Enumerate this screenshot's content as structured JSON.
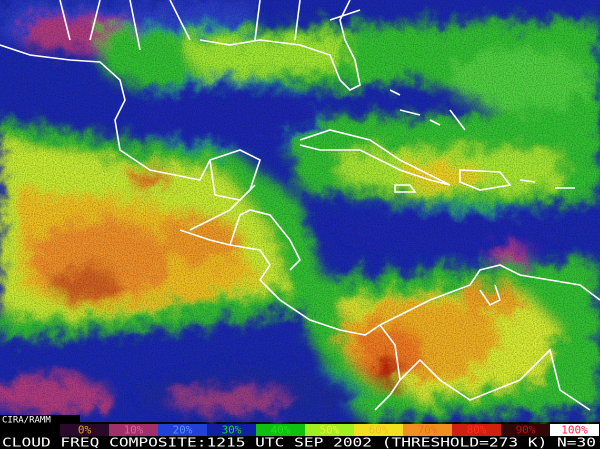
{
  "credit": "CIRA/RAMM",
  "legend": {
    "labels": [
      "0%",
      "10%",
      "20%",
      "30%",
      "40%",
      "50%",
      "60%",
      "70%",
      "80%",
      "90%",
      "100%"
    ],
    "colors": [
      "#2a0a2a",
      "#a0306a",
      "#2040d8",
      "#1020a0",
      "#10c010",
      "#a0f020",
      "#f0e020",
      "#f09020",
      "#d02010",
      "#300808",
      "#ffffff"
    ],
    "text_colors": [
      "#f0a020",
      "#e060a0",
      "#6090ff",
      "#20d040",
      "#20e020",
      "#f0f040",
      "#f0c020",
      "#f07020",
      "#ff3020",
      "#c01010",
      "#ff2040"
    ]
  },
  "caption": "CLOUD FREQ COMPOSITE:1215 UTC SEP 2002 (THRESHOLD=273 K) N=30"
}
